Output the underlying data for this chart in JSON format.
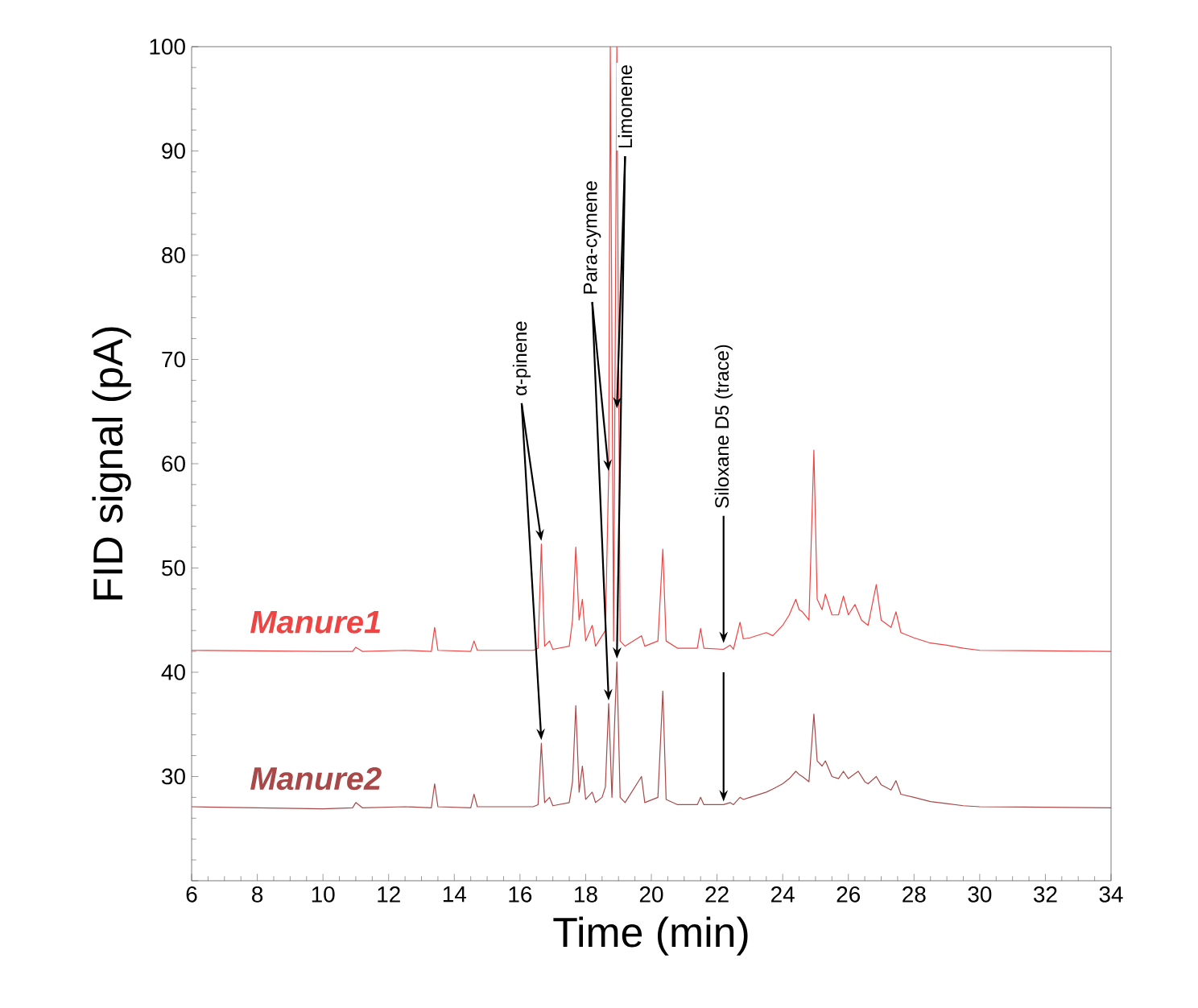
{
  "chart_data": {
    "type": "line",
    "xlabel": "Time (min)",
    "ylabel": "FID signal (pA)",
    "xlim": [
      6,
      34
    ],
    "ylim": [
      20,
      100
    ],
    "xticks": [
      6,
      8,
      10,
      12,
      14,
      16,
      18,
      20,
      22,
      24,
      26,
      28,
      30,
      32,
      34
    ],
    "yticks": [
      {
        "value": 20,
        "label": null
      },
      30,
      40,
      50,
      60,
      70,
      80,
      90,
      100
    ],
    "grid": false,
    "marker": "none",
    "line_style": "solid",
    "series": [
      {
        "name": "Manure1",
        "color": "#ee4444",
        "x": [
          6,
          10,
          10.9,
          11,
          11.2,
          12.5,
          13.3,
          13.4,
          13.5,
          14.5,
          14.6,
          14.7,
          16.4,
          16.55,
          16.65,
          16.75,
          16.9,
          17.0,
          17.5,
          17.6,
          17.7,
          17.8,
          17.9,
          18.0,
          18.2,
          18.3,
          18.5,
          18.6,
          18.7,
          18.75,
          18.85,
          18.95,
          19.05,
          19.2,
          19.7,
          19.8,
          20.2,
          20.35,
          20.45,
          20.8,
          21.4,
          21.5,
          21.6,
          22.2,
          22.4,
          22.5,
          22.7,
          22.8,
          23.0,
          23.5,
          23.7,
          24.0,
          24.2,
          24.4,
          24.5,
          24.6,
          24.8,
          24.95,
          25.05,
          25.2,
          25.3,
          25.5,
          25.7,
          25.85,
          26.0,
          26.2,
          26.4,
          26.6,
          26.85,
          27.0,
          27.3,
          27.45,
          27.6,
          28.0,
          28.5,
          29.0,
          29.5,
          30,
          34
        ],
        "values": [
          42.1,
          42.0,
          42.0,
          42.4,
          42.0,
          42.1,
          42.0,
          44.3,
          42.1,
          42.0,
          43.0,
          42.1,
          42.1,
          42.3,
          52.3,
          42.5,
          43,
          42.2,
          42.5,
          45,
          52,
          45,
          47,
          43,
          44.5,
          42.5,
          43.5,
          44,
          59,
          100,
          43,
          100,
          43,
          42.5,
          43.5,
          42.5,
          43,
          51.8,
          43,
          42.3,
          42.3,
          44.2,
          42.3,
          42.2,
          42.6,
          42.2,
          44.8,
          43.2,
          43.3,
          43.8,
          43.5,
          44.5,
          45.5,
          47.0,
          46,
          45.8,
          45.0,
          61.3,
          47,
          46,
          47.5,
          45.5,
          45.5,
          47.3,
          45.5,
          46.5,
          45.0,
          44.5,
          48.4,
          45,
          44.3,
          45.8,
          43.8,
          43.3,
          42.8,
          42.6,
          42.3,
          42.1,
          42.0
        ]
      },
      {
        "name": "Manure2",
        "color": "#a84848",
        "x": [
          6,
          10,
          10.9,
          11,
          11.2,
          12.5,
          13.3,
          13.4,
          13.5,
          14.5,
          14.6,
          14.7,
          16.4,
          16.55,
          16.65,
          16.75,
          16.9,
          17.0,
          17.5,
          17.6,
          17.7,
          17.8,
          17.9,
          18.0,
          18.2,
          18.3,
          18.5,
          18.6,
          18.7,
          18.8,
          18.95,
          19.05,
          19.2,
          19.7,
          19.8,
          20.2,
          20.35,
          20.45,
          20.8,
          21.4,
          21.5,
          21.6,
          22.2,
          22.4,
          22.5,
          22.7,
          22.8,
          23.0,
          23.5,
          23.7,
          24.0,
          24.2,
          24.4,
          24.5,
          24.6,
          24.8,
          24.95,
          25.05,
          25.2,
          25.3,
          25.5,
          25.7,
          25.85,
          26.0,
          26.3,
          26.5,
          26.6,
          26.85,
          27.0,
          27.3,
          27.45,
          27.6,
          28.0,
          28.5,
          29.0,
          29.5,
          30,
          34
        ],
        "values": [
          27.1,
          26.9,
          27.0,
          27.5,
          27.0,
          27.1,
          27.0,
          29.3,
          27.1,
          27.0,
          28.3,
          27.1,
          27.1,
          27.3,
          33.2,
          27.5,
          28,
          27.2,
          27.5,
          29.5,
          36.8,
          28.5,
          31,
          27.8,
          28.5,
          27.5,
          28,
          29,
          37,
          28,
          41,
          28,
          27.5,
          30,
          27.5,
          28,
          38.2,
          27.8,
          27.3,
          27.3,
          28,
          27.3,
          27.3,
          27.5,
          27.3,
          28.0,
          27.8,
          28.0,
          28.5,
          28.8,
          29.3,
          29.8,
          30.5,
          30.2,
          30,
          29.5,
          36,
          31.5,
          31,
          31.5,
          30,
          29.8,
          30.5,
          29.8,
          30.5,
          29.5,
          29.3,
          30,
          29.2,
          28.7,
          29.6,
          28.3,
          28,
          27.6,
          27.4,
          27.2,
          27.1,
          27.0
        ]
      }
    ],
    "annotations": [
      {
        "text": "α-pinene",
        "x": 16.65,
        "y": 52.3
      },
      {
        "text": "Para-cymene",
        "x": 18.7,
        "y": 59
      },
      {
        "text": "Limonene",
        "x": 18.95,
        "y": 65
      },
      {
        "text": "Siloxane D5 (trace)",
        "x": 22.2,
        "y": 42.5
      }
    ]
  }
}
